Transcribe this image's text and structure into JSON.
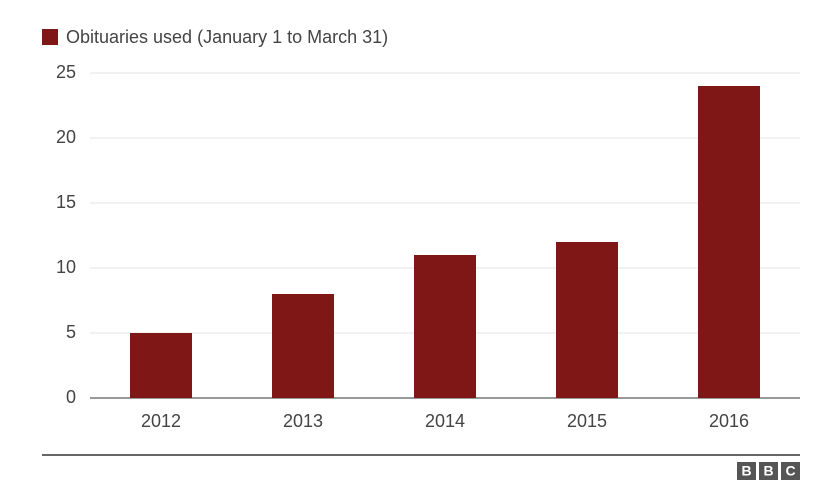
{
  "chart_data": {
    "type": "bar",
    "legend": "Obituaries used (January 1 to March 31)",
    "categories": [
      "2012",
      "2013",
      "2014",
      "2015",
      "2016"
    ],
    "values": [
      5,
      8,
      11,
      12,
      24
    ],
    "color": "#7e1716",
    "ylim": [
      0,
      25
    ],
    "yticks": [
      0,
      5,
      10,
      15,
      20,
      25
    ],
    "grid": true,
    "legend_position": "top-left",
    "logo_letters": [
      "B",
      "B",
      "C"
    ]
  }
}
